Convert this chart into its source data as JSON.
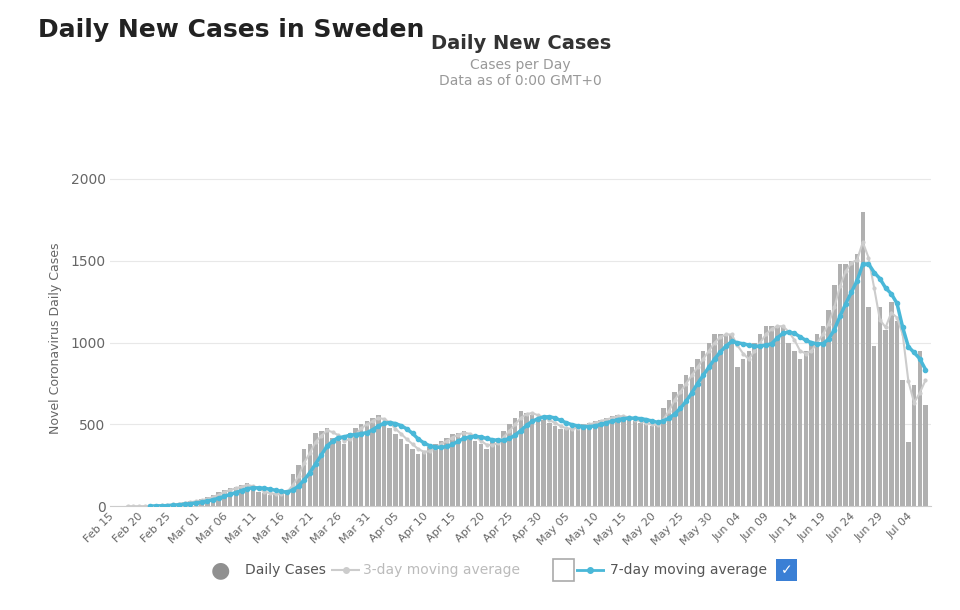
{
  "title_outside": "Daily New Cases in Sweden",
  "chart_title": "Daily New Cases",
  "chart_subtitle1": "Cases per Day",
  "chart_subtitle2": "Data as of 0:00 GMT+0",
  "ylabel": "Novel Coronavirus Daily Cases",
  "bg_color": "#ffffff",
  "plot_bg_color": "#ffffff",
  "bar_color": "#b0b0b0",
  "line3_color": "#cccccc",
  "line7_color": "#4ab8d8",
  "grid_color": "#e8e8e8",
  "tick_labels": [
    "Feb 15",
    "Feb 20",
    "Feb 25",
    "Mar 01",
    "Mar 06",
    "Mar 11",
    "Mar 16",
    "Mar 21",
    "Mar 26",
    "Mar 31",
    "Apr 05",
    "Apr 10",
    "Apr 15",
    "Apr 20",
    "Apr 25",
    "Apr 30",
    "May 05",
    "May 10",
    "May 15",
    "May 20",
    "May 25",
    "May 30",
    "Jun 04",
    "Jun 09",
    "Jun 14",
    "Jun 19",
    "Jun 24",
    "Jun 29",
    "Jul 04"
  ],
  "daily": [
    1,
    0,
    1,
    0,
    1,
    2,
    4,
    5,
    8,
    10,
    15,
    20,
    25,
    30,
    35,
    45,
    55,
    70,
    90,
    100,
    110,
    120,
    130,
    140,
    100,
    90,
    80,
    70,
    75,
    85,
    100,
    200,
    250,
    350,
    380,
    450,
    460,
    480,
    420,
    400,
    380,
    450,
    480,
    500,
    520,
    540,
    560,
    500,
    480,
    440,
    410,
    380,
    350,
    320,
    330,
    360,
    380,
    400,
    420,
    440,
    450,
    460,
    420,
    400,
    380,
    350,
    390,
    420,
    460,
    500,
    540,
    580,
    570,
    560,
    540,
    530,
    510,
    490,
    470,
    470,
    480,
    490,
    500,
    510,
    520,
    530,
    540,
    550,
    560,
    540,
    530,
    520,
    510,
    500,
    490,
    500,
    600,
    650,
    700,
    750,
    800,
    850,
    900,
    950,
    1000,
    1050,
    1050,
    1050,
    1050,
    850,
    900,
    950,
    1000,
    1050,
    1100,
    1100,
    1100,
    1100,
    1000,
    950,
    900,
    950,
    1000,
    1050,
    1100,
    1200,
    1350,
    1480,
    1480,
    1500,
    1540,
    1800,
    1220,
    980,
    1220,
    1080,
    1250,
    1130,
    770,
    390,
    740,
    950,
    620
  ],
  "ylim": [
    0,
    2050
  ],
  "yticks": [
    0,
    500,
    1000,
    1500,
    2000
  ],
  "title_fontsize": 18,
  "chart_title_fontsize": 14,
  "subtitle_fontsize": 10
}
